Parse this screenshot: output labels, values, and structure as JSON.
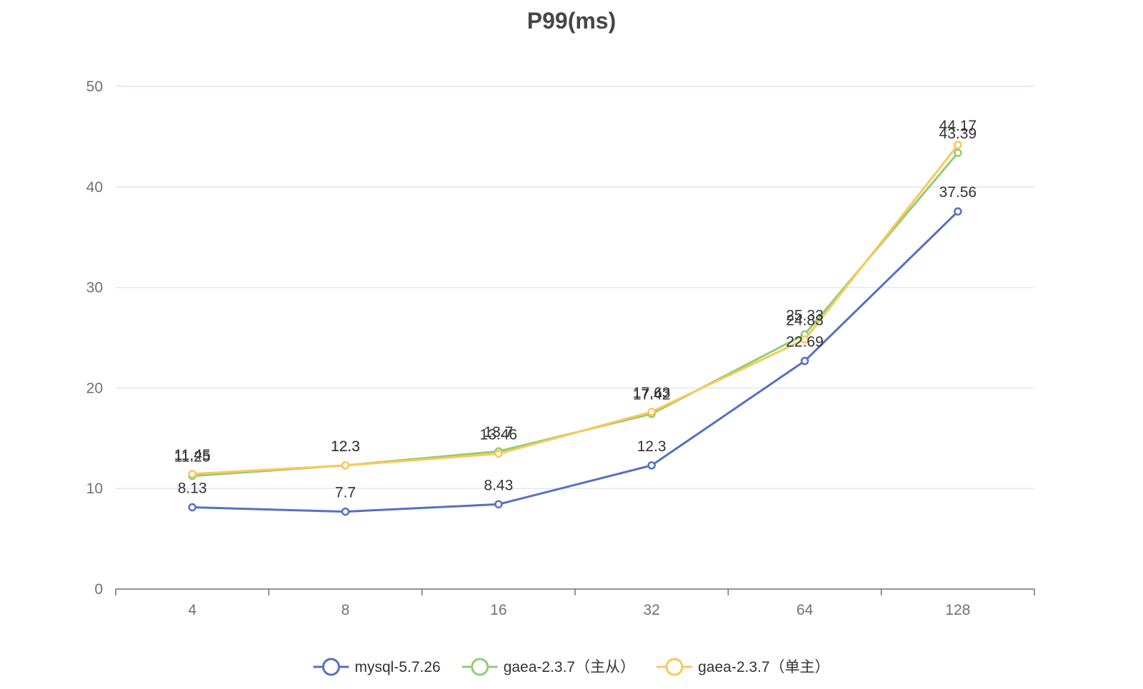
{
  "chart_data": {
    "type": "line",
    "title": "P99(ms)",
    "xlabel": "",
    "ylabel": "",
    "categories": [
      "4",
      "8",
      "16",
      "32",
      "64",
      "128"
    ],
    "ylim": [
      0,
      50
    ],
    "yticks": [
      0,
      10,
      20,
      30,
      40,
      50
    ],
    "grid": true,
    "legend_position": "bottom-center",
    "series": [
      {
        "name": "mysql-5.7.26",
        "color": "#5470c6",
        "values": [
          8.13,
          7.7,
          8.43,
          12.3,
          22.69,
          37.56
        ]
      },
      {
        "name": "gaea-2.3.7（主从）",
        "color": "#91cc75",
        "values": [
          11.25,
          12.3,
          13.7,
          17.42,
          25.33,
          43.39
        ]
      },
      {
        "name": "gaea-2.3.7（单主）",
        "color": "#fac858",
        "values": [
          11.45,
          12.3,
          13.46,
          17.63,
          24.83,
          44.17
        ]
      }
    ]
  }
}
